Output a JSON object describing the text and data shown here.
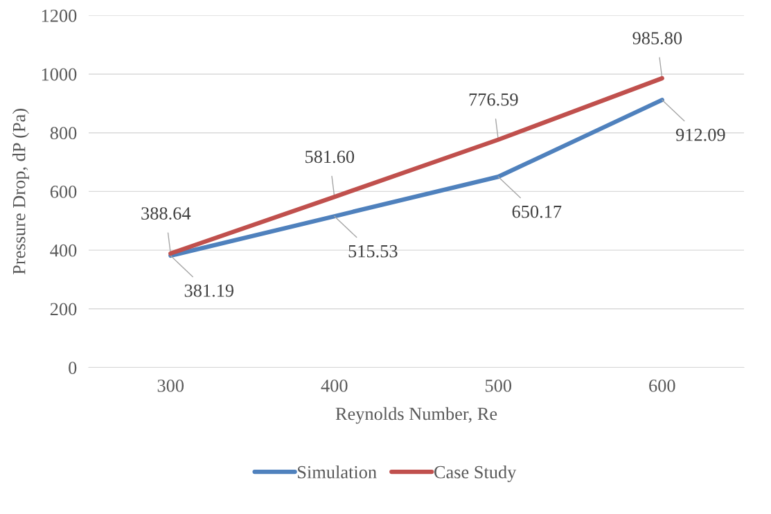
{
  "chart_data": {
    "type": "line",
    "xlabel": "Reynolds Number, Re",
    "ylabel": "Pressure Drop, dP (Pa)",
    "categories": [
      "300",
      "400",
      "500",
      "600"
    ],
    "series": [
      {
        "name": "Simulation",
        "color": "#4f81bd",
        "values": [
          381.19,
          515.53,
          650.17,
          912.09
        ],
        "value_labels": [
          "381.19",
          "515.53",
          "650.17",
          "912.09"
        ]
      },
      {
        "name": "Case Study",
        "color": "#c0504d",
        "values": [
          388.64,
          581.6,
          776.59,
          985.8
        ],
        "value_labels": [
          "388.64",
          "581.60",
          "776.59",
          "985.80"
        ]
      }
    ],
    "ylim": [
      0,
      1200
    ],
    "yticks": [
      0,
      200,
      400,
      600,
      800,
      1000,
      1200
    ],
    "grid": "y",
    "legend": "bottom",
    "marker": "none",
    "line_style": "solid"
  }
}
